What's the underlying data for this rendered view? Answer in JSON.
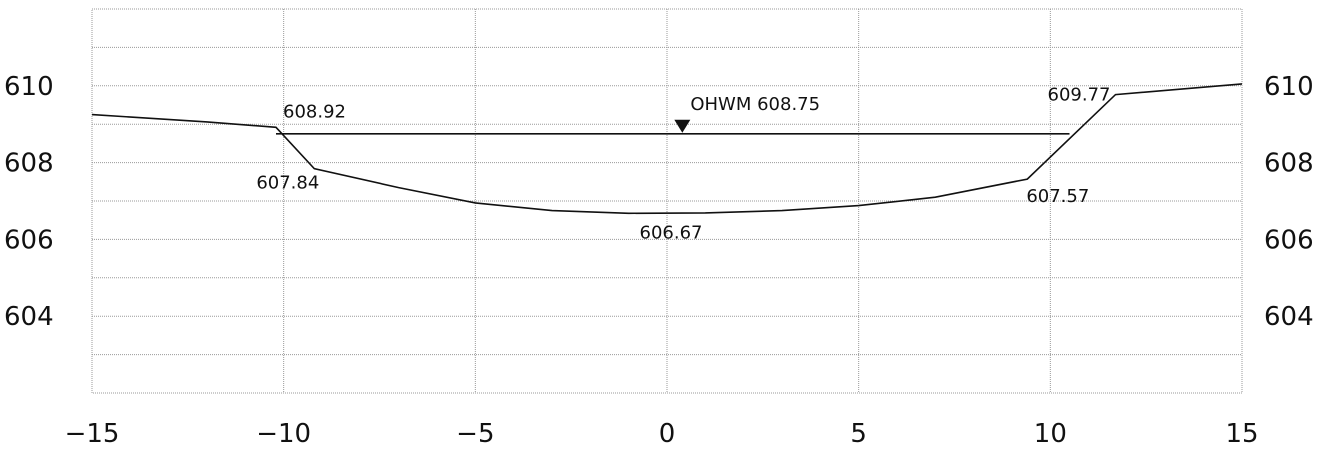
{
  "chart_data": {
    "type": "line",
    "title": "",
    "xlabel": "",
    "ylabel": "",
    "xlim": [
      -15,
      15
    ],
    "ylim": [
      602,
      612
    ],
    "x_ticks": [
      -15,
      -10,
      -5,
      0,
      5,
      10,
      15
    ],
    "x_tick_labels": [
      "−15",
      "−10",
      "−5",
      "0",
      "5",
      "10",
      "15"
    ],
    "y_ticks": [
      604,
      606,
      608,
      610
    ],
    "y_tick_labels": [
      "604",
      "606",
      "608",
      "610"
    ],
    "grid": true,
    "series": [
      {
        "points": [
          [
            -15,
            609.25
          ],
          [
            -12,
            609.06
          ],
          [
            -10.2,
            608.92
          ],
          [
            -9.2,
            607.84
          ],
          [
            -7,
            607.35
          ],
          [
            -5,
            606.95
          ],
          [
            -3,
            606.75
          ],
          [
            -1,
            606.68
          ],
          [
            1,
            606.69
          ],
          [
            3,
            606.75
          ],
          [
            5,
            606.88
          ],
          [
            7,
            607.1
          ],
          [
            9.4,
            607.57
          ],
          [
            11.7,
            609.77
          ],
          [
            15,
            610.05
          ]
        ]
      }
    ],
    "water_surface": {
      "value": 608.75,
      "x_range": [
        -10.2,
        10.5
      ]
    },
    "annotations": [
      {
        "text": "OHWM 608.75",
        "x": 0.4,
        "y": 608.75,
        "marker": "inverted-triangle"
      },
      {
        "text": "608.92",
        "x": -10.2,
        "y": 608.92
      },
      {
        "text": "607.84",
        "x": -9.2,
        "y": 607.84
      },
      {
        "text": "606.67",
        "x": -0.3,
        "y": 606.67
      },
      {
        "text": "607.57",
        "x": 9.4,
        "y": 607.57
      },
      {
        "text": "609.77",
        "x": 11.7,
        "y": 609.77
      }
    ],
    "colors": {
      "line": "#111111",
      "grid": "#9a9a9a"
    }
  }
}
